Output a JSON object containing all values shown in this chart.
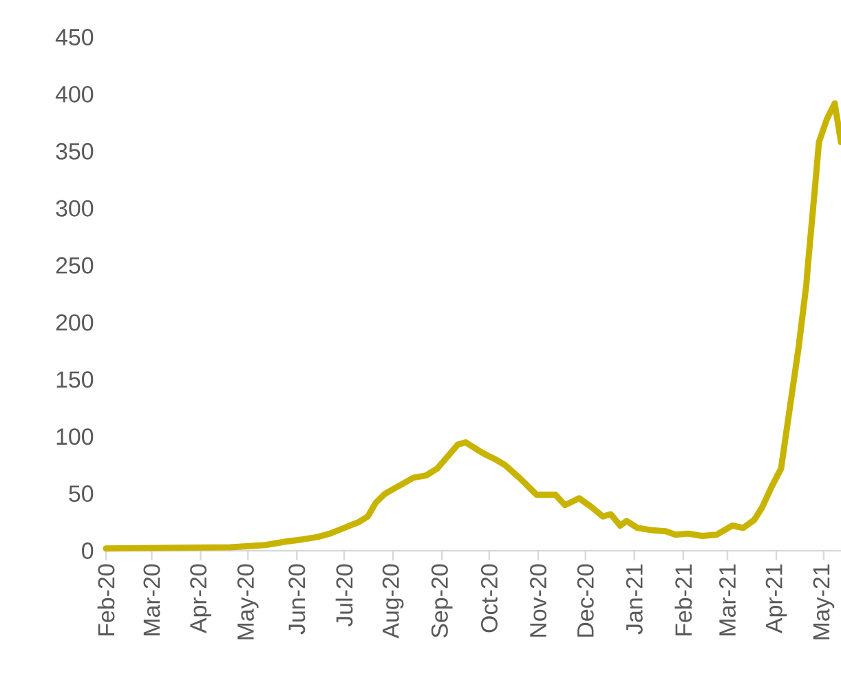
{
  "chart_data": {
    "type": "line",
    "x": [
      "2020-02-01",
      "2020-04-20",
      "2020-05-12",
      "2020-05-25",
      "2020-06-05",
      "2020-06-14",
      "2020-06-22",
      "2020-07-01",
      "2020-07-10",
      "2020-07-16",
      "2020-07-21",
      "2020-07-27",
      "2020-08-05",
      "2020-08-14",
      "2020-08-22",
      "2020-08-29",
      "2020-09-03",
      "2020-09-11",
      "2020-09-16",
      "2020-09-24",
      "2020-09-29",
      "2020-10-05",
      "2020-10-11",
      "2020-10-20",
      "2020-10-31",
      "2020-11-12",
      "2020-11-18",
      "2020-11-27",
      "2020-12-05",
      "2020-12-12",
      "2020-12-17",
      "2020-12-23",
      "2020-12-27",
      "2021-01-03",
      "2021-01-12",
      "2021-01-21",
      "2021-01-27",
      "2021-02-04",
      "2021-02-13",
      "2021-02-22",
      "2021-03-04",
      "2021-03-11",
      "2021-03-18",
      "2021-03-23",
      "2021-03-29",
      "2021-04-04",
      "2021-04-09",
      "2021-04-15",
      "2021-04-20",
      "2021-04-21",
      "2021-04-26",
      "2021-04-28",
      "2021-05-03",
      "2021-05-08",
      "2021-05-12"
    ],
    "series": [
      {
        "color": "#c8b400",
        "values": [
          2,
          3,
          5,
          8,
          10,
          12,
          15,
          20,
          25,
          30,
          42,
          50,
          57,
          64,
          66,
          72,
          80,
          93,
          95,
          88,
          84,
          80,
          75,
          64,
          49,
          49,
          40,
          46,
          38,
          30,
          32,
          22,
          26,
          20,
          18,
          17,
          14,
          15,
          13,
          14,
          22,
          20,
          27,
          38,
          56,
          72,
          120,
          177,
          233,
          250,
          326,
          358,
          378,
          392,
          358
        ]
      }
    ],
    "xlim": [
      "2020-02-01",
      "2021-05-12"
    ],
    "xticks": [
      {
        "value": "2020-02-01",
        "label": "Feb-20"
      },
      {
        "value": "2020-03-01",
        "label": "Mar-20"
      },
      {
        "value": "2020-04-01",
        "label": "Apr-20"
      },
      {
        "value": "2020-05-01",
        "label": "May-20"
      },
      {
        "value": "2020-06-01",
        "label": "Jun-20"
      },
      {
        "value": "2020-07-01",
        "label": "Jul-20"
      },
      {
        "value": "2020-08-01",
        "label": "Aug-20"
      },
      {
        "value": "2020-09-01",
        "label": "Sep-20"
      },
      {
        "value": "2020-10-01",
        "label": "Oct-20"
      },
      {
        "value": "2020-11-01",
        "label": "Nov-20"
      },
      {
        "value": "2020-12-01",
        "label": "Dec-20"
      },
      {
        "value": "2021-01-01",
        "label": "Jan-21"
      },
      {
        "value": "2021-02-01",
        "label": "Feb-21"
      },
      {
        "value": "2021-03-01",
        "label": "Mar-21"
      },
      {
        "value": "2021-04-01",
        "label": "Apr-21"
      },
      {
        "value": "2021-05-01",
        "label": "May-21"
      }
    ],
    "ylim": [
      0,
      450
    ],
    "yticks": [
      0,
      50,
      100,
      150,
      200,
      250,
      300,
      350,
      400,
      450
    ],
    "grid": false,
    "marker": "none",
    "line_style": "solid"
  }
}
